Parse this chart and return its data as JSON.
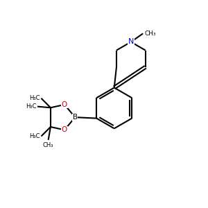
{
  "line_color": "#000000",
  "N_color": "#0000cc",
  "O_color": "#cc0000",
  "bond_lw": 1.5,
  "font_size": 7.0,
  "fig_width": 3.0,
  "fig_height": 3.0,
  "xlim": [
    0,
    10
  ],
  "ylim": [
    0,
    10
  ]
}
